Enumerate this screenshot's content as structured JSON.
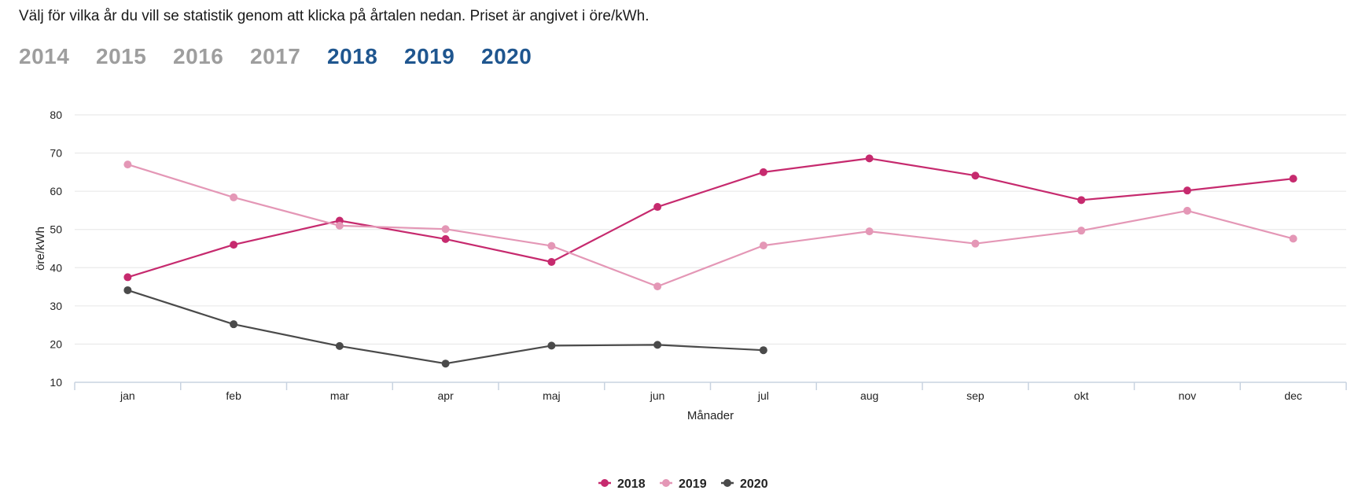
{
  "intro": "Välj för vilka år du vill se statistik genom att klicka på årtalen nedan. Priset är angivet i öre/kWh.",
  "year_selector": [
    {
      "label": "2014",
      "active": false
    },
    {
      "label": "2015",
      "active": false
    },
    {
      "label": "2016",
      "active": false
    },
    {
      "label": "2017",
      "active": false
    },
    {
      "label": "2018",
      "active": true
    },
    {
      "label": "2019",
      "active": true
    },
    {
      "label": "2020",
      "active": true
    }
  ],
  "colors": {
    "inactive_year": "#9e9e9e",
    "active_year": "#1f568f",
    "grid": "#e6e6e6",
    "axis": "#c8d3e0"
  },
  "chart_data": {
    "type": "line",
    "categories": [
      "jan",
      "feb",
      "mar",
      "apr",
      "maj",
      "jun",
      "jul",
      "aug",
      "sep",
      "okt",
      "nov",
      "dec"
    ],
    "xlabel": "Månader",
    "ylabel": "öre/kWh",
    "ylim": [
      10,
      80
    ],
    "yticks": [
      10,
      20,
      30,
      40,
      50,
      60,
      70,
      80
    ],
    "grid": true,
    "legend_position": "bottom-center",
    "series": [
      {
        "name": "2018",
        "color": "#c62a6e",
        "values": [
          37.5,
          46,
          52.3,
          47.5,
          41.5,
          55.9,
          65,
          68.6,
          64.1,
          57.7,
          60.2,
          63.3
        ]
      },
      {
        "name": "2019",
        "color": "#e497b6",
        "values": [
          67,
          58.4,
          51,
          50.1,
          45.7,
          35.1,
          45.8,
          49.5,
          46.3,
          49.7,
          54.9,
          47.6
        ]
      },
      {
        "name": "2020",
        "color": "#4a4a4a",
        "values": [
          34.1,
          25.2,
          19.5,
          14.9,
          19.6,
          19.8,
          18.4,
          null,
          null,
          null,
          null,
          null
        ]
      }
    ]
  }
}
